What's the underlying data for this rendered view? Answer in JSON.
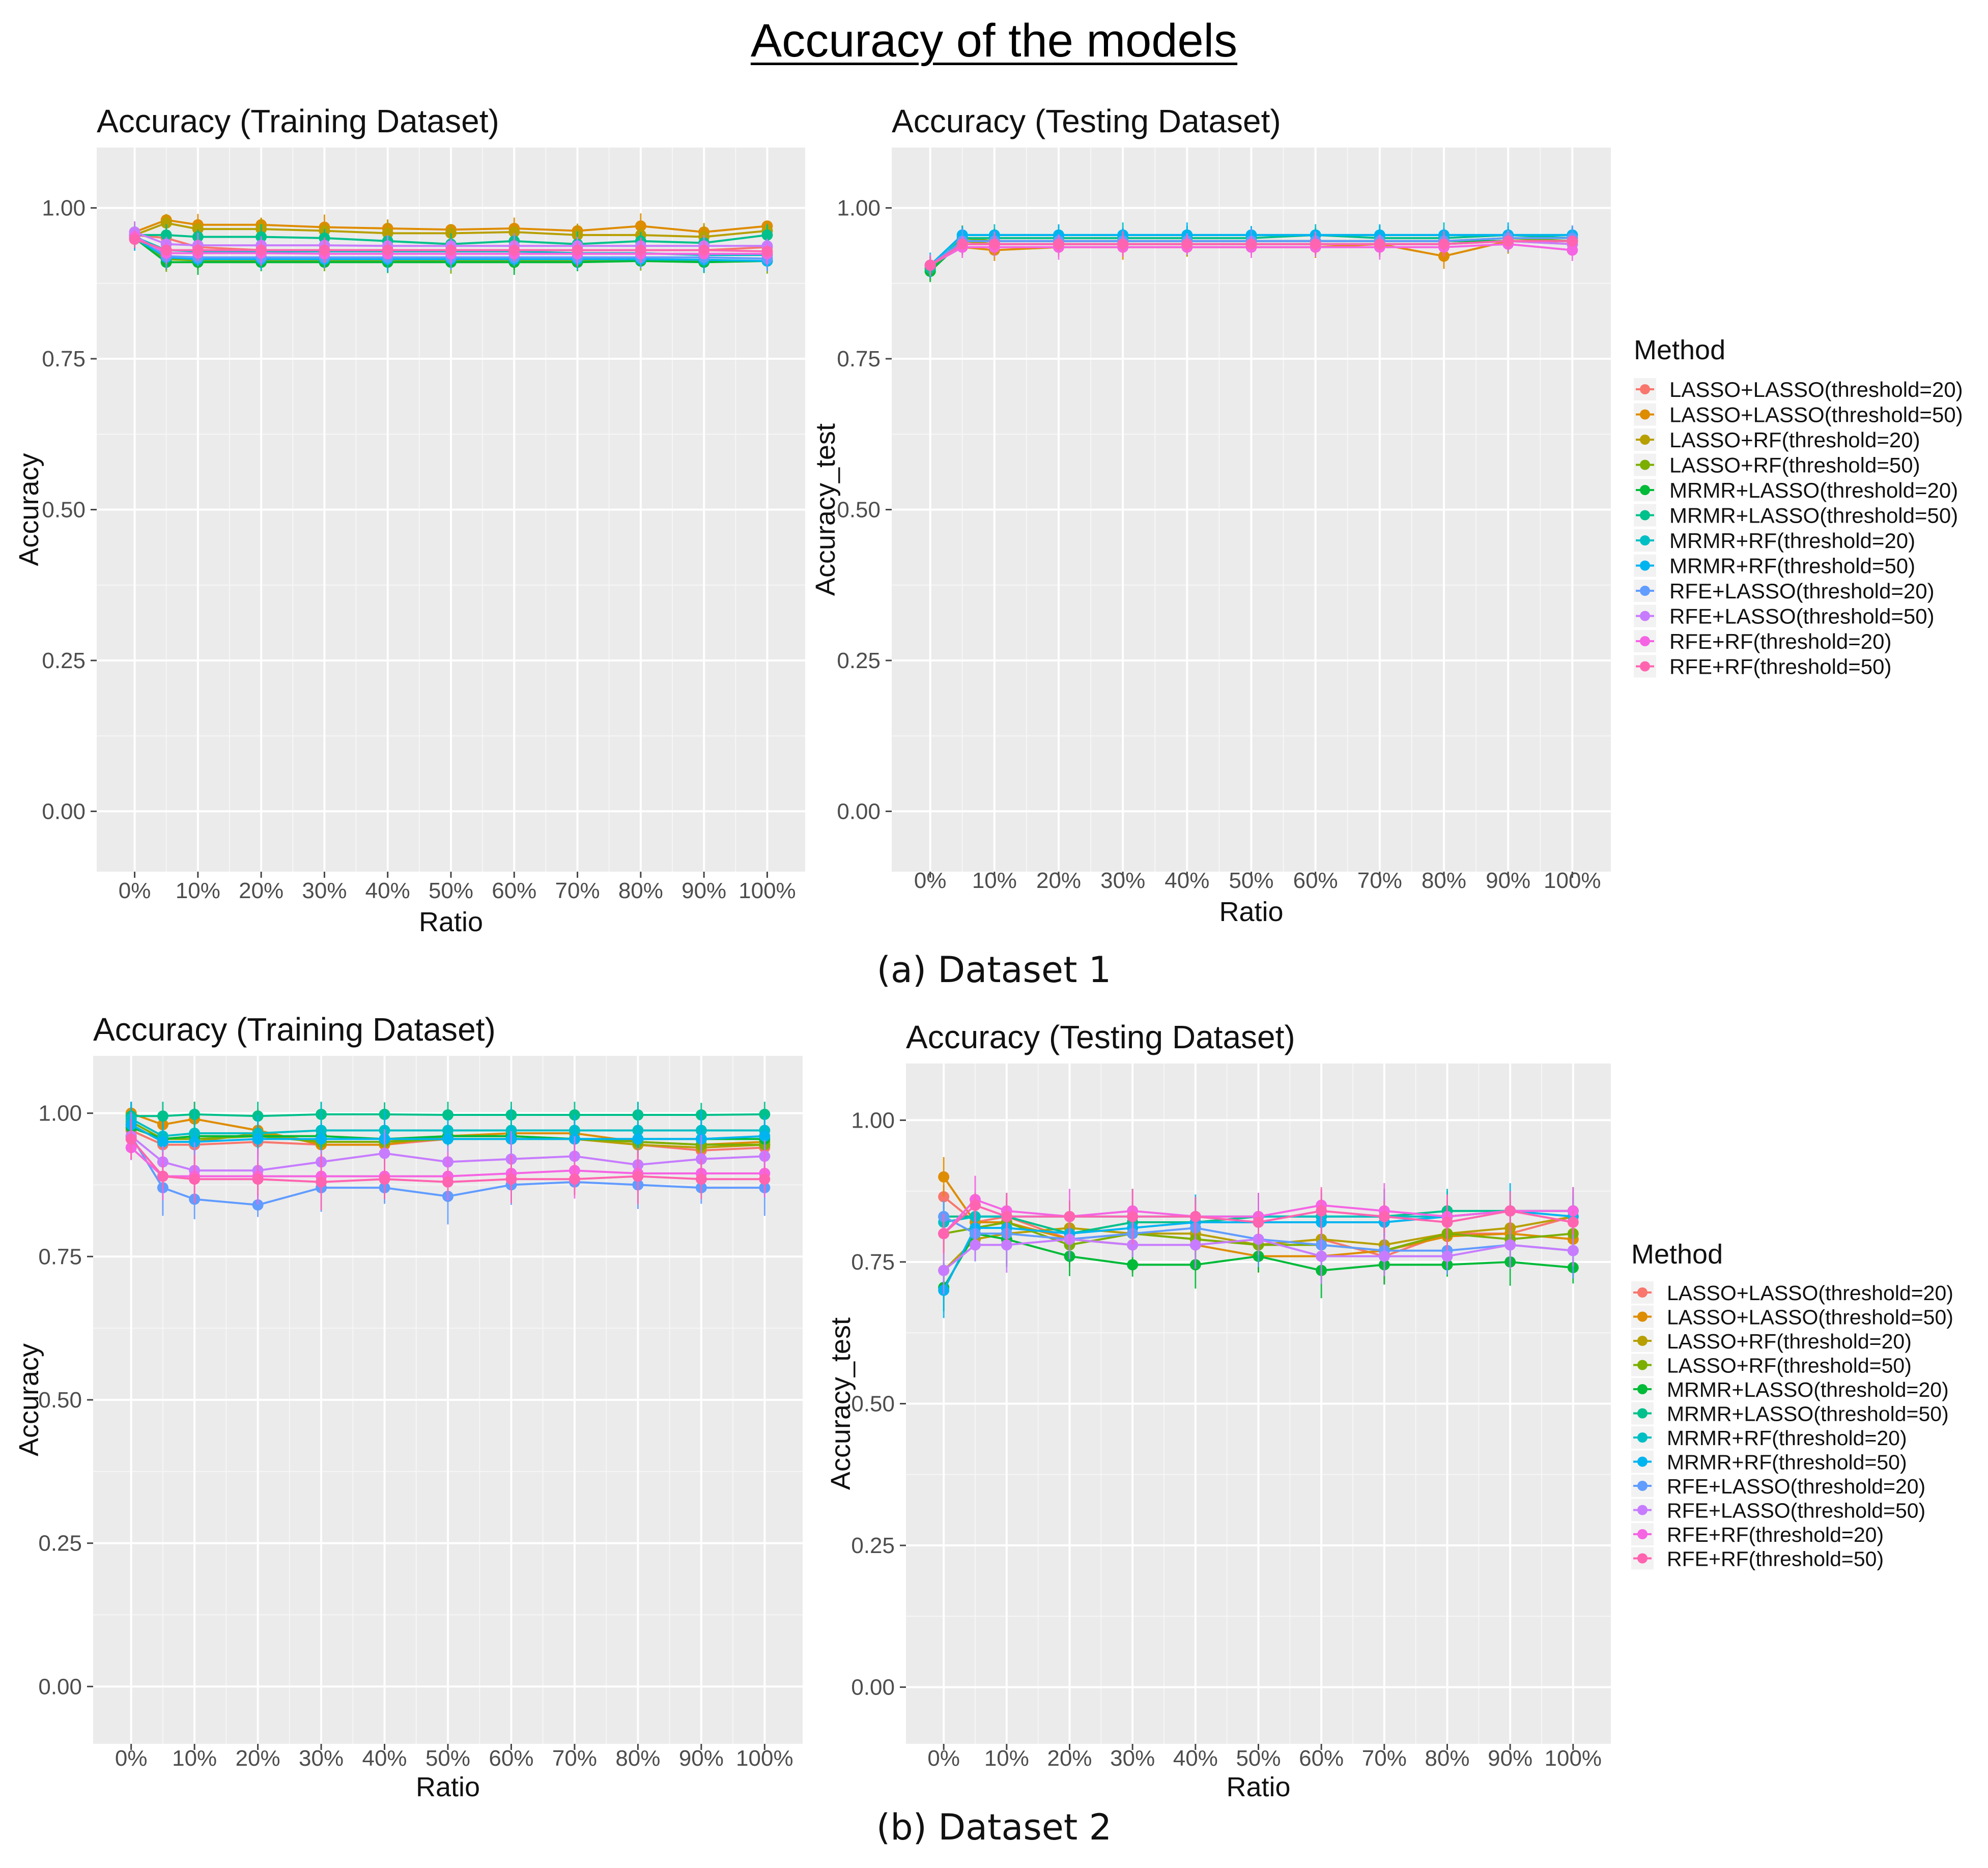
{
  "figure": {
    "title": "Accuracy of the models",
    "caption_a": "(a) Dataset 1",
    "caption_b": "(b) Dataset 2"
  },
  "legend": {
    "title": "Method",
    "methods": [
      "LASSO+LASSO(threshold=20)",
      "LASSO+LASSO(threshold=50)",
      "LASSO+RF(threshold=20)",
      "LASSO+RF(threshold=50)",
      "MRMR+LASSO(threshold=20)",
      "MRMR+LASSO(threshold=50)",
      "MRMR+RF(threshold=20)",
      "MRMR+RF(threshold=50)",
      "RFE+LASSO(threshold=20)",
      "RFE+LASSO(threshold=50)",
      "RFE+RF(threshold=20)",
      "RFE+RF(threshold=50)"
    ],
    "colors": [
      "#F8766D",
      "#DE8C00",
      "#B79F00",
      "#7CAE00",
      "#00BA38",
      "#00C08B",
      "#00BFC4",
      "#00B4F0",
      "#619CFF",
      "#C77CFF",
      "#F564E3",
      "#FF64B0"
    ]
  },
  "chart_data": [
    {
      "type": "line",
      "title": "Accuracy (Training Dataset)",
      "xlabel": "Ratio",
      "ylabel": "Accuracy",
      "ylim": [
        -0.1,
        1.1
      ],
      "yticks": [
        "0.00",
        "0.25",
        "0.50",
        "0.75",
        "1.00"
      ],
      "categories": [
        "0%",
        "10%",
        "20%",
        "30%",
        "40%",
        "50%",
        "60%",
        "70%",
        "80%",
        "90%",
        "100%"
      ],
      "x": [
        0,
        5,
        10,
        20,
        30,
        40,
        50,
        60,
        70,
        80,
        90,
        100
      ],
      "series": [
        {
          "name": "LASSO+LASSO(threshold=20)",
          "values": [
            0.955,
            0.95,
            0.935,
            0.93,
            0.93,
            0.93,
            0.93,
            0.93,
            0.93,
            0.93,
            0.93,
            0.935
          ]
        },
        {
          "name": "LASSO+LASSO(threshold=50)",
          "values": [
            0.96,
            0.98,
            0.972,
            0.972,
            0.968,
            0.966,
            0.964,
            0.966,
            0.962,
            0.97,
            0.96,
            0.97
          ]
        },
        {
          "name": "LASSO+RF(threshold=20)",
          "values": [
            0.955,
            0.975,
            0.965,
            0.965,
            0.962,
            0.958,
            0.958,
            0.96,
            0.955,
            0.955,
            0.952,
            0.962
          ]
        },
        {
          "name": "LASSO+RF(threshold=50)",
          "values": [
            0.95,
            0.915,
            0.913,
            0.912,
            0.913,
            0.912,
            0.912,
            0.912,
            0.912,
            0.914,
            0.912,
            0.912
          ]
        },
        {
          "name": "MRMR+LASSO(threshold=20)",
          "values": [
            0.95,
            0.91,
            0.91,
            0.91,
            0.91,
            0.91,
            0.91,
            0.91,
            0.91,
            0.912,
            0.91,
            0.912
          ]
        },
        {
          "name": "MRMR+LASSO(threshold=50)",
          "values": [
            0.955,
            0.955,
            0.952,
            0.952,
            0.95,
            0.945,
            0.94,
            0.945,
            0.94,
            0.945,
            0.942,
            0.955
          ]
        },
        {
          "name": "MRMR+RF(threshold=20)",
          "values": [
            0.952,
            0.93,
            0.928,
            0.928,
            0.928,
            0.928,
            0.928,
            0.928,
            0.925,
            0.925,
            0.922,
            0.922
          ]
        },
        {
          "name": "MRMR+RF(threshold=50)",
          "values": [
            0.95,
            0.918,
            0.915,
            0.915,
            0.915,
            0.915,
            0.915,
            0.915,
            0.915,
            0.915,
            0.914,
            0.912
          ]
        },
        {
          "name": "RFE+LASSO(threshold=20)",
          "values": [
            0.955,
            0.92,
            0.918,
            0.918,
            0.918,
            0.918,
            0.918,
            0.918,
            0.918,
            0.918,
            0.918,
            0.916
          ]
        },
        {
          "name": "RFE+LASSO(threshold=50)",
          "values": [
            0.96,
            0.94,
            0.938,
            0.938,
            0.938,
            0.937,
            0.937,
            0.937,
            0.937,
            0.937,
            0.937,
            0.937
          ]
        },
        {
          "name": "RFE+RF(threshold=20)",
          "values": [
            0.952,
            0.925,
            0.925,
            0.925,
            0.924,
            0.924,
            0.924,
            0.924,
            0.924,
            0.924,
            0.924,
            0.924
          ]
        },
        {
          "name": "RFE+RF(threshold=50)",
          "values": [
            0.948,
            0.93,
            0.93,
            0.93,
            0.93,
            0.93,
            0.93,
            0.93,
            0.93,
            0.93,
            0.93,
            0.928
          ]
        }
      ]
    },
    {
      "type": "line",
      "title": "Accuracy (Testing Dataset)",
      "xlabel": "Ratio",
      "ylabel": "Accuracy_test",
      "ylim": [
        -0.1,
        1.1
      ],
      "yticks": [
        "0.00",
        "0.25",
        "0.50",
        "0.75",
        "1.00"
      ],
      "categories": [
        "0%",
        "10%",
        "20%",
        "30%",
        "40%",
        "50%",
        "60%",
        "70%",
        "80%",
        "90%",
        "100%"
      ],
      "x": [
        0,
        5,
        10,
        20,
        30,
        40,
        50,
        60,
        70,
        80,
        90,
        100
      ],
      "series": [
        {
          "name": "LASSO+LASSO(threshold=20)",
          "values": [
            0.905,
            0.94,
            0.94,
            0.94,
            0.94,
            0.94,
            0.94,
            0.94,
            0.94,
            0.94,
            0.945,
            0.945
          ]
        },
        {
          "name": "LASSO+LASSO(threshold=50)",
          "values": [
            0.905,
            0.935,
            0.93,
            0.935,
            0.935,
            0.935,
            0.935,
            0.935,
            0.94,
            0.92,
            0.945,
            0.94
          ]
        },
        {
          "name": "LASSO+RF(threshold=20)",
          "values": [
            0.9,
            0.945,
            0.94,
            0.94,
            0.94,
            0.94,
            0.94,
            0.94,
            0.94,
            0.94,
            0.945,
            0.945
          ]
        },
        {
          "name": "LASSO+RF(threshold=50)",
          "values": [
            0.895,
            0.95,
            0.945,
            0.945,
            0.945,
            0.945,
            0.945,
            0.945,
            0.945,
            0.945,
            0.95,
            0.945
          ]
        },
        {
          "name": "MRMR+LASSO(threshold=20)",
          "values": [
            0.895,
            0.945,
            0.945,
            0.945,
            0.945,
            0.945,
            0.945,
            0.945,
            0.945,
            0.945,
            0.945,
            0.945
          ]
        },
        {
          "name": "MRMR+LASSO(threshold=50)",
          "values": [
            0.9,
            0.95,
            0.95,
            0.95,
            0.95,
            0.95,
            0.95,
            0.955,
            0.95,
            0.95,
            0.955,
            0.95
          ]
        },
        {
          "name": "MRMR+RF(threshold=20)",
          "values": [
            0.905,
            0.955,
            0.955,
            0.955,
            0.955,
            0.955,
            0.955,
            0.955,
            0.955,
            0.955,
            0.955,
            0.955
          ]
        },
        {
          "name": "MRMR+RF(threshold=50)",
          "values": [
            0.905,
            0.955,
            0.955,
            0.955,
            0.955,
            0.955,
            0.955,
            0.955,
            0.955,
            0.955,
            0.955,
            0.955
          ]
        },
        {
          "name": "RFE+LASSO(threshold=20)",
          "values": [
            0.905,
            0.945,
            0.945,
            0.945,
            0.945,
            0.945,
            0.945,
            0.945,
            0.945,
            0.945,
            0.95,
            0.95
          ]
        },
        {
          "name": "RFE+LASSO(threshold=50)",
          "values": [
            0.905,
            0.94,
            0.94,
            0.94,
            0.94,
            0.94,
            0.94,
            0.94,
            0.94,
            0.94,
            0.945,
            0.94
          ]
        },
        {
          "name": "RFE+RF(threshold=20)",
          "values": [
            0.905,
            0.935,
            0.935,
            0.935,
            0.935,
            0.935,
            0.935,
            0.935,
            0.935,
            0.935,
            0.94,
            0.93
          ]
        },
        {
          "name": "RFE+RF(threshold=50)",
          "values": [
            0.905,
            0.94,
            0.94,
            0.94,
            0.94,
            0.94,
            0.94,
            0.94,
            0.94,
            0.94,
            0.945,
            0.945
          ]
        }
      ]
    },
    {
      "type": "line",
      "title": "Accuracy (Training Dataset)",
      "xlabel": "Ratio",
      "ylabel": "Accuracy",
      "ylim": [
        -0.1,
        1.1
      ],
      "yticks": [
        "0.00",
        "0.25",
        "0.50",
        "0.75",
        "1.00"
      ],
      "categories": [
        "0%",
        "10%",
        "20%",
        "30%",
        "40%",
        "50%",
        "60%",
        "70%",
        "80%",
        "90%",
        "100%"
      ],
      "x": [
        0,
        5,
        10,
        20,
        30,
        40,
        50,
        60,
        70,
        80,
        90,
        100
      ],
      "series": [
        {
          "name": "LASSO+LASSO(threshold=20)",
          "values": [
            0.97,
            0.945,
            0.945,
            0.95,
            0.945,
            0.945,
            0.955,
            0.955,
            0.955,
            0.945,
            0.935,
            0.94
          ]
        },
        {
          "name": "LASSO+LASSO(threshold=50)",
          "values": [
            1.0,
            0.98,
            0.99,
            0.97,
            0.945,
            0.945,
            0.96,
            0.965,
            0.965,
            0.95,
            0.945,
            0.95
          ]
        },
        {
          "name": "LASSO+RF(threshold=20)",
          "values": [
            0.98,
            0.95,
            0.95,
            0.965,
            0.95,
            0.95,
            0.96,
            0.96,
            0.955,
            0.945,
            0.94,
            0.945
          ]
        },
        {
          "name": "LASSO+RF(threshold=50)",
          "values": [
            0.985,
            0.955,
            0.955,
            0.96,
            0.95,
            0.95,
            0.955,
            0.955,
            0.955,
            0.95,
            0.945,
            0.945
          ]
        },
        {
          "name": "MRMR+LASSO(threshold=20)",
          "values": [
            0.975,
            0.955,
            0.96,
            0.96,
            0.96,
            0.955,
            0.96,
            0.96,
            0.955,
            0.955,
            0.955,
            0.955
          ]
        },
        {
          "name": "MRMR+LASSO(threshold=50)",
          "values": [
            0.995,
            0.995,
            0.998,
            0.995,
            0.998,
            0.998,
            0.997,
            0.997,
            0.997,
            0.997,
            0.997,
            0.998
          ]
        },
        {
          "name": "MRMR+RF(threshold=20)",
          "values": [
            0.99,
            0.96,
            0.965,
            0.965,
            0.97,
            0.97,
            0.97,
            0.97,
            0.97,
            0.97,
            0.97,
            0.97
          ]
        },
        {
          "name": "MRMR+RF(threshold=50)",
          "values": [
            0.98,
            0.95,
            0.95,
            0.955,
            0.955,
            0.955,
            0.955,
            0.955,
            0.955,
            0.955,
            0.955,
            0.96
          ]
        },
        {
          "name": "RFE+LASSO(threshold=20)",
          "values": [
            0.96,
            0.87,
            0.85,
            0.84,
            0.87,
            0.87,
            0.855,
            0.875,
            0.88,
            0.875,
            0.87,
            0.87
          ]
        },
        {
          "name": "RFE+LASSO(threshold=50)",
          "values": [
            0.96,
            0.915,
            0.9,
            0.9,
            0.915,
            0.93,
            0.915,
            0.92,
            0.925,
            0.91,
            0.92,
            0.925
          ]
        },
        {
          "name": "RFE+RF(threshold=20)",
          "values": [
            0.94,
            0.89,
            0.89,
            0.89,
            0.89,
            0.89,
            0.89,
            0.895,
            0.9,
            0.895,
            0.895,
            0.895
          ]
        },
        {
          "name": "RFE+RF(threshold=50)",
          "values": [
            0.955,
            0.89,
            0.885,
            0.885,
            0.88,
            0.885,
            0.88,
            0.885,
            0.885,
            0.89,
            0.885,
            0.885
          ]
        }
      ]
    },
    {
      "type": "line",
      "title": "Accuracy (Testing Dataset)",
      "xlabel": "Ratio",
      "ylabel": "Accuracy_test",
      "ylim": [
        -0.1,
        1.1
      ],
      "yticks": [
        "0.00",
        "0.25",
        "0.50",
        "0.75",
        "1.00"
      ],
      "categories": [
        "0%",
        "10%",
        "20%",
        "30%",
        "40%",
        "50%",
        "60%",
        "70%",
        "80%",
        "90%",
        "100%"
      ],
      "x": [
        0,
        5,
        10,
        20,
        30,
        40,
        50,
        60,
        70,
        80,
        90,
        100
      ],
      "series": [
        {
          "name": "LASSO+LASSO(threshold=20)",
          "values": [
            0.865,
            0.82,
            0.83,
            0.79,
            0.8,
            0.79,
            0.78,
            0.79,
            0.76,
            0.8,
            0.8,
            0.83
          ]
        },
        {
          "name": "LASSO+LASSO(threshold=50)",
          "values": [
            0.9,
            0.82,
            0.82,
            0.79,
            0.78,
            0.78,
            0.76,
            0.76,
            0.77,
            0.795,
            0.8,
            0.79
          ]
        },
        {
          "name": "LASSO+RF(threshold=20)",
          "values": [
            0.735,
            0.79,
            0.8,
            0.81,
            0.8,
            0.8,
            0.78,
            0.79,
            0.78,
            0.8,
            0.81,
            0.83
          ]
        },
        {
          "name": "LASSO+RF(threshold=50)",
          "values": [
            0.8,
            0.81,
            0.82,
            0.78,
            0.8,
            0.79,
            0.78,
            0.78,
            0.77,
            0.8,
            0.79,
            0.8
          ]
        },
        {
          "name": "MRMR+LASSO(threshold=20)",
          "values": [
            0.705,
            0.8,
            0.79,
            0.76,
            0.745,
            0.745,
            0.76,
            0.735,
            0.745,
            0.745,
            0.75,
            0.74
          ]
        },
        {
          "name": "MRMR+LASSO(threshold=50)",
          "values": [
            0.83,
            0.83,
            0.83,
            0.8,
            0.82,
            0.82,
            0.83,
            0.83,
            0.83,
            0.84,
            0.84,
            0.84
          ]
        },
        {
          "name": "MRMR+RF(threshold=20)",
          "values": [
            0.82,
            0.83,
            0.83,
            0.83,
            0.83,
            0.83,
            0.83,
            0.83,
            0.83,
            0.83,
            0.84,
            0.84
          ]
        },
        {
          "name": "MRMR+RF(threshold=50)",
          "values": [
            0.7,
            0.81,
            0.81,
            0.8,
            0.81,
            0.82,
            0.82,
            0.82,
            0.82,
            0.83,
            0.84,
            0.83
          ]
        },
        {
          "name": "RFE+LASSO(threshold=20)",
          "values": [
            0.83,
            0.8,
            0.8,
            0.79,
            0.8,
            0.81,
            0.79,
            0.78,
            0.77,
            0.77,
            0.78,
            0.77
          ]
        },
        {
          "name": "RFE+LASSO(threshold=50)",
          "values": [
            0.735,
            0.78,
            0.78,
            0.79,
            0.78,
            0.78,
            0.79,
            0.76,
            0.76,
            0.76,
            0.78,
            0.77
          ]
        },
        {
          "name": "RFE+RF(threshold=20)",
          "values": [
            0.8,
            0.86,
            0.84,
            0.83,
            0.84,
            0.83,
            0.83,
            0.85,
            0.84,
            0.83,
            0.84,
            0.84
          ]
        },
        {
          "name": "RFE+RF(threshold=50)",
          "values": [
            0.8,
            0.85,
            0.83,
            0.83,
            0.83,
            0.83,
            0.82,
            0.84,
            0.83,
            0.82,
            0.84,
            0.82
          ]
        }
      ]
    }
  ]
}
